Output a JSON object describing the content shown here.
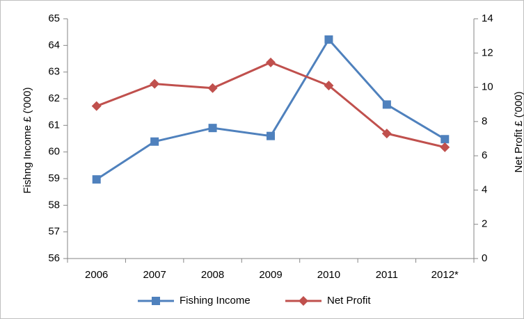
{
  "chart_data": {
    "type": "line",
    "categories": [
      "2006",
      "2007",
      "2008",
      "2009",
      "2010",
      "2011",
      "2012*"
    ],
    "series": [
      {
        "name": "Fishing Income",
        "axis": "left",
        "color": "#4F81BD",
        "marker": "square",
        "values": [
          58.97,
          60.39,
          60.9,
          60.6,
          64.22,
          61.78,
          60.48
        ]
      },
      {
        "name": "Net Profit",
        "axis": "right",
        "color": "#C0504D",
        "marker": "diamond",
        "values": [
          8.9,
          10.2,
          9.95,
          11.45,
          10.1,
          7.3,
          6.5
        ]
      }
    ],
    "ylabel": "Fishng Income £ ('000)",
    "y2label": "Net Profit £ ('000)",
    "ylim": [
      56,
      65
    ],
    "y2lim": [
      0,
      14
    ],
    "yticks": [
      "56",
      "57",
      "58",
      "59",
      "60",
      "61",
      "62",
      "63",
      "64",
      "65"
    ],
    "y2ticks": [
      "0",
      "2",
      "4",
      "6",
      "8",
      "10",
      "12",
      "14"
    ],
    "grid": false,
    "legend_position": "bottom"
  }
}
